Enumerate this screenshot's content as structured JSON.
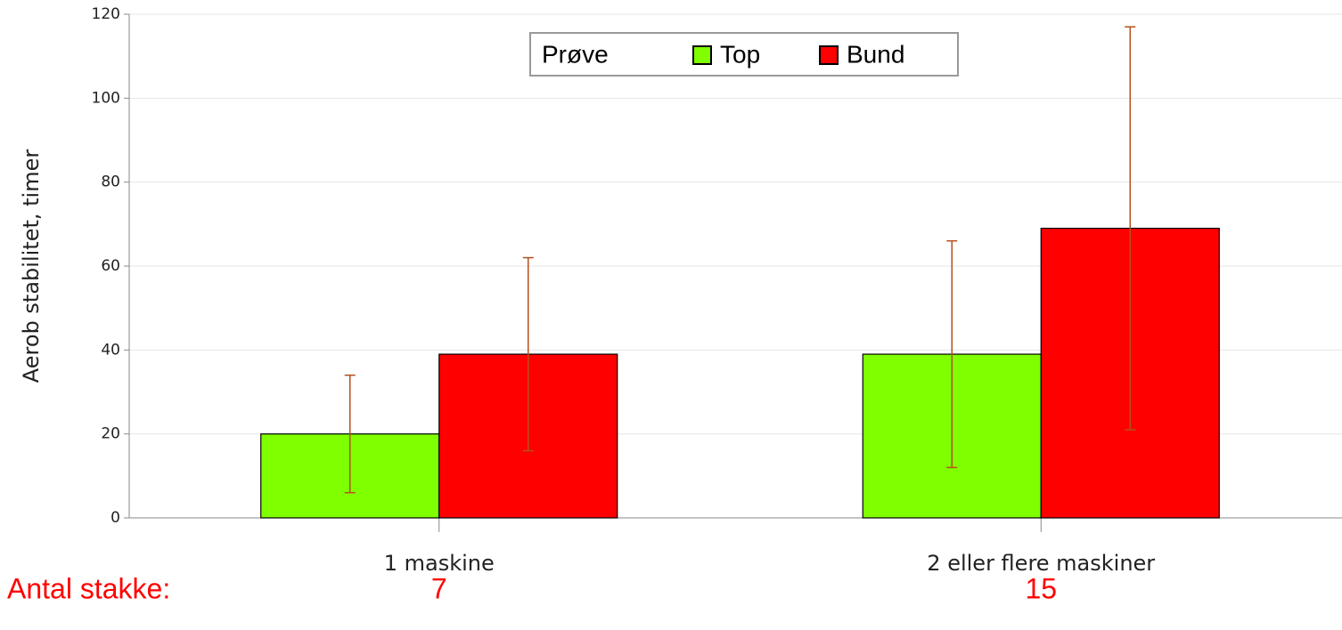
{
  "chart_data": {
    "type": "bar",
    "y_label": "Aerob stabilitet, timer",
    "categories": [
      "1 maskine",
      "2 eller flere maskiner"
    ],
    "series": [
      {
        "name": "Top",
        "color": "#80ff00",
        "values": [
          20,
          39
        ],
        "errors": [
          14,
          27
        ]
      },
      {
        "name": "Bund",
        "color": "#ff0000",
        "values": [
          39,
          69
        ],
        "errors": [
          23,
          48
        ]
      }
    ],
    "legend_title": "Prøve",
    "ylim": [
      0,
      120
    ],
    "yticks": [
      0,
      20,
      40,
      60,
      80,
      100,
      120
    ],
    "grid": true,
    "error_color": "#b5501f",
    "annotation_label": "Antal stakke:",
    "annotation_values": [
      7,
      15
    ]
  }
}
